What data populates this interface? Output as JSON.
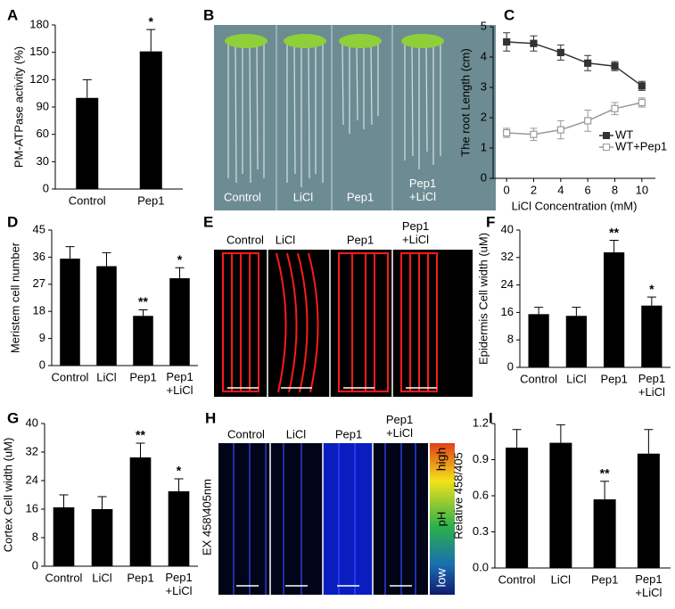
{
  "chart_data": [
    {
      "panel": "A",
      "type": "bar",
      "ylabel": "PM-ATPase activity (%)",
      "categories": [
        "Control",
        "Pep1"
      ],
      "series": [
        {
          "color": "#000000",
          "values": [
            100,
            151
          ],
          "errors": [
            20,
            24
          ]
        }
      ],
      "ylim": [
        0,
        180
      ],
      "yticks": [
        0,
        30,
        60,
        90,
        120,
        150,
        180
      ],
      "annotations": [
        {
          "text": "*",
          "category": "Pep1"
        }
      ]
    },
    {
      "panel": "C",
      "type": "line",
      "ylabel": "The root  Length (cm)",
      "xlabel": "LiCl Concentration (mM)",
      "x": [
        0,
        2,
        4,
        6,
        8,
        10
      ],
      "series": [
        {
          "name": "WT",
          "color": "#333333",
          "values": [
            4.5,
            4.45,
            4.15,
            3.8,
            3.7,
            3.05
          ],
          "errors": [
            0.3,
            0.25,
            0.25,
            0.25,
            0.15,
            0.15
          ]
        },
        {
          "name": "WT+Pep1",
          "color": "#999999",
          "values": [
            1.5,
            1.45,
            1.6,
            1.9,
            2.3,
            2.5
          ],
          "errors": [
            0.15,
            0.2,
            0.3,
            0.35,
            0.2,
            0.15
          ]
        }
      ],
      "xlim": [
        -1,
        11
      ],
      "xticks": [
        0,
        2,
        4,
        6,
        8,
        10
      ],
      "ylim": [
        0,
        5
      ],
      "yticks": [
        0,
        1,
        2,
        3,
        4,
        5
      ]
    },
    {
      "panel": "D",
      "type": "bar",
      "ylabel": "Meristem cell number",
      "categories": [
        "Control",
        "LiCl",
        "Pep1",
        "Pep1\n+LiCl"
      ],
      "series": [
        {
          "color": "#000000",
          "values": [
            35.5,
            33,
            16.5,
            29
          ],
          "errors": [
            4,
            4.5,
            2,
            3.5
          ]
        }
      ],
      "ylim": [
        0,
        45
      ],
      "yticks": [
        0,
        9,
        18,
        27,
        36,
        45
      ],
      "annotations": [
        {
          "text": "**",
          "category": "Pep1"
        },
        {
          "text": "*",
          "category": "Pep1\n+LiCl"
        }
      ]
    },
    {
      "panel": "F",
      "type": "bar",
      "ylabel": "Epidermis Cell width  (uM)",
      "categories": [
        "Control",
        "LiCl",
        "Pep1",
        "Pep1\n+LiCl"
      ],
      "series": [
        {
          "color": "#000000",
          "values": [
            15.5,
            15,
            33.5,
            18
          ],
          "errors": [
            2,
            2.5,
            3.5,
            2.5
          ]
        }
      ],
      "ylim": [
        0,
        40
      ],
      "yticks": [
        0,
        8,
        16,
        24,
        32,
        40
      ],
      "annotations": [
        {
          "text": "**",
          "category": "Pep1"
        },
        {
          "text": "*",
          "category": "Pep1\n+LiCl"
        }
      ]
    },
    {
      "panel": "G",
      "type": "bar",
      "ylabel": "Cortex Cell width (uM)",
      "categories": [
        "Control",
        "LiCl",
        "Pep1",
        "Pep1\n+LiCl"
      ],
      "series": [
        {
          "color": "#000000",
          "values": [
            16.5,
            16,
            30.5,
            21
          ],
          "errors": [
            3.5,
            3.5,
            4,
            3.5
          ]
        }
      ],
      "ylim": [
        0,
        40
      ],
      "yticks": [
        0,
        8,
        16,
        24,
        32,
        40
      ],
      "annotations": [
        {
          "text": "**",
          "category": "Pep1"
        },
        {
          "text": "*",
          "category": "Pep1\n+LiCl"
        }
      ]
    },
    {
      "panel": "I",
      "type": "bar",
      "ylabel": "Relative 458/405",
      "categories": [
        "Control",
        "LiCl",
        "Pep1",
        "Pep1\n+LiCl"
      ],
      "series": [
        {
          "color": "#000000",
          "values": [
            1.0,
            1.04,
            0.57,
            0.95
          ],
          "errors": [
            0.15,
            0.15,
            0.15,
            0.2
          ]
        }
      ],
      "ylim": [
        0,
        1.2
      ],
      "yticks": [
        {
          "value": 0,
          "label": "0.0"
        },
        0.3,
        0.6,
        0.9,
        1.2
      ],
      "annotations": [
        {
          "text": "**",
          "category": "Pep1"
        }
      ]
    }
  ],
  "photo_panels": [
    {
      "panel": "B",
      "captions": [
        "Control",
        "LiCl",
        "Pep1",
        "Pep1\n+LiCl"
      ]
    },
    {
      "panel": "E",
      "captions": [
        "Control",
        "LiCl",
        "Pep1",
        "Pep1\n+LiCl"
      ]
    },
    {
      "panel": "H",
      "captions": [
        "Control",
        "LiCl",
        "Pep1",
        "Pep1\n+LiCl"
      ],
      "ylabel": "EX 458\\405nm",
      "scale": [
        "high",
        "pH",
        "low"
      ]
    }
  ]
}
